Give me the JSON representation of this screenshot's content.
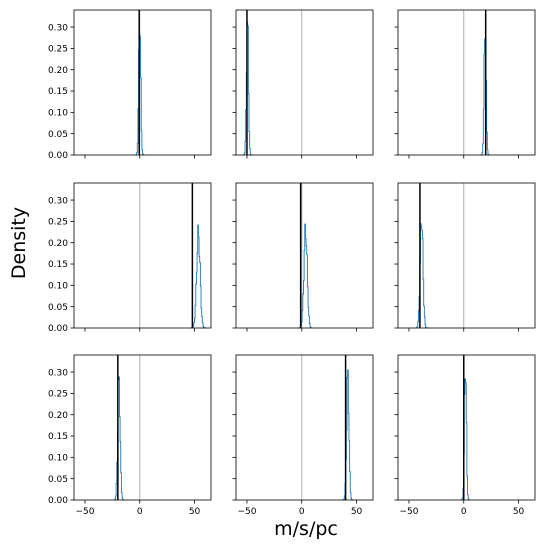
{
  "chart_data": {
    "type": "histogram-grid",
    "rows": 3,
    "cols": 3,
    "xlabel": "m/s/pc",
    "ylabel": "Density",
    "xlim": [
      -60,
      65
    ],
    "ylim": [
      0,
      0.34
    ],
    "xticks": [
      -50,
      0,
      50
    ],
    "yticks": [
      0.0,
      0.05,
      0.1,
      0.15,
      0.2,
      0.25,
      0.3
    ],
    "ytick_labels": [
      "0.00",
      "0.05",
      "0.10",
      "0.15",
      "0.20",
      "0.25",
      "0.30"
    ],
    "reference_line_x": 0,
    "colors": {
      "histogram": "#1f77b4",
      "true_value": "#000000",
      "reference": "#b0b0b0",
      "frame": "#000000"
    },
    "panels": [
      {
        "true_value": -0.5,
        "center": 0.0,
        "peak": 0.32,
        "sd": 0.9
      },
      {
        "true_value": -50,
        "center": -49.5,
        "peak": 0.31,
        "sd": 0.9
      },
      {
        "true_value": 20,
        "center": 19.5,
        "peak": 0.31,
        "sd": 0.9
      },
      {
        "true_value": 48,
        "center": 53.5,
        "peak": 0.22,
        "sd": 1.6
      },
      {
        "true_value": -1,
        "center": 3.5,
        "peak": 0.23,
        "sd": 1.5
      },
      {
        "true_value": -40,
        "center": -38.5,
        "peak": 0.26,
        "sd": 1.3
      },
      {
        "true_value": -20,
        "center": -19.0,
        "peak": 0.28,
        "sd": 1.1
      },
      {
        "true_value": 40,
        "center": 42.0,
        "peak": 0.29,
        "sd": 1.1
      },
      {
        "true_value": 0,
        "center": 1.5,
        "peak": 0.32,
        "sd": 0.9
      }
    ]
  }
}
